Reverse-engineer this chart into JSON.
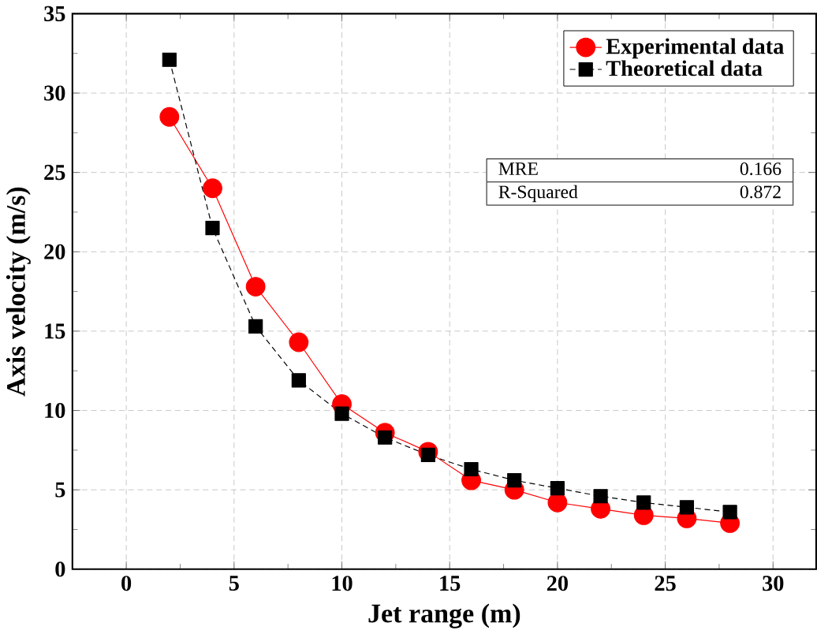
{
  "chart_data": {
    "type": "line",
    "xlabel": "Jet range (m)",
    "ylabel": "Axis velocity (m/s)",
    "x": [
      2,
      4,
      6,
      8,
      10,
      12,
      14,
      16,
      18,
      20,
      22,
      24,
      26,
      28
    ],
    "series": [
      {
        "name": "Experimental data",
        "color": "#ff0000",
        "marker": "circle",
        "values": [
          28.5,
          24.0,
          17.8,
          14.3,
          10.4,
          8.6,
          7.4,
          5.6,
          5.0,
          4.2,
          3.8,
          3.4,
          3.2,
          2.9
        ]
      },
      {
        "name": "Theoretical data",
        "color": "#000000",
        "marker": "square",
        "line_style": "dashed",
        "values": [
          32.1,
          21.5,
          15.3,
          11.9,
          9.8,
          8.3,
          7.2,
          6.3,
          5.6,
          5.1,
          4.6,
          4.2,
          3.9,
          3.6
        ]
      }
    ],
    "xlim": [
      -2.5,
      32
    ],
    "ylim": [
      0,
      35
    ],
    "xticks": [
      0,
      5,
      10,
      15,
      20,
      25,
      30
    ],
    "yticks": [
      0,
      5,
      10,
      15,
      20,
      25,
      30,
      35
    ],
    "grid": true,
    "legend": "top right",
    "annotations": [
      "MRE",
      "0.166",
      "R-Squared",
      "0.872"
    ]
  }
}
